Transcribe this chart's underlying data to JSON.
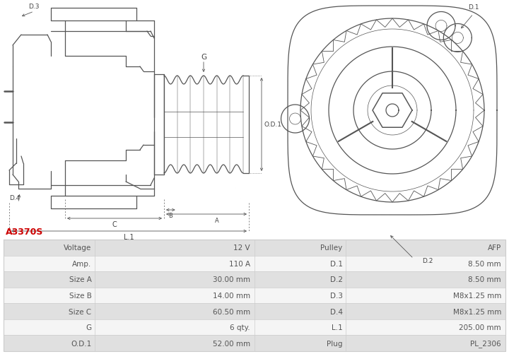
{
  "title": "A3370S",
  "title_color": "#cc0000",
  "bg_color": "#ffffff",
  "table_row_dark": "#e0e0e0",
  "table_row_light": "#f5f5f5",
  "table_border_color": "#cccccc",
  "line_color": "#555555",
  "label_color": "#444444",
  "dim_color": "#666666",
  "rows": [
    [
      "Voltage",
      "12 V",
      "Pulley",
      "AFP"
    ],
    [
      "Amp.",
      "110 A",
      "D.1",
      "8.50 mm"
    ],
    [
      "Size A",
      "30.00 mm",
      "D.2",
      "8.50 mm"
    ],
    [
      "Size B",
      "14.00 mm",
      "D.3",
      "M8x1.25 mm"
    ],
    [
      "Size C",
      "60.50 mm",
      "D.4",
      "M8x1.25 mm"
    ],
    [
      "G",
      "6 qty.",
      "L.1",
      "205.00 mm"
    ],
    [
      "O.D.1",
      "52.00 mm",
      "Plug",
      "PL_2306"
    ]
  ],
  "font_size_table": 7.5,
  "font_size_label": 6.5,
  "font_size_title": 9
}
